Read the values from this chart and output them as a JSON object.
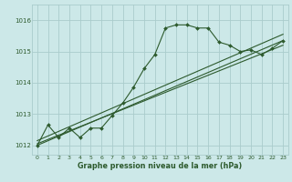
{
  "bg_color": "#cce8e8",
  "grid_color": "#aacccc",
  "line_color": "#2d5a2d",
  "xlabel": "Graphe pression niveau de la mer (hPa)",
  "xlim": [
    -0.5,
    23.5
  ],
  "ylim": [
    1011.7,
    1016.5
  ],
  "yticks": [
    1012,
    1013,
    1014,
    1015,
    1016
  ],
  "xticks": [
    0,
    1,
    2,
    3,
    4,
    5,
    6,
    7,
    8,
    9,
    10,
    11,
    12,
    13,
    14,
    15,
    16,
    17,
    18,
    19,
    20,
    21,
    22,
    23
  ],
  "main_line": [
    [
      0,
      1012.0
    ],
    [
      1,
      1012.65
    ],
    [
      2,
      1012.25
    ],
    [
      3,
      1012.55
    ],
    [
      4,
      1012.25
    ],
    [
      5,
      1012.55
    ],
    [
      6,
      1012.55
    ],
    [
      7,
      1012.95
    ],
    [
      8,
      1013.35
    ],
    [
      9,
      1013.85
    ],
    [
      10,
      1014.45
    ],
    [
      11,
      1014.9
    ],
    [
      12,
      1015.75
    ],
    [
      13,
      1015.85
    ],
    [
      14,
      1015.85
    ],
    [
      15,
      1015.75
    ],
    [
      16,
      1015.75
    ],
    [
      17,
      1015.3
    ],
    [
      18,
      1015.2
    ],
    [
      19,
      1015.0
    ],
    [
      20,
      1015.05
    ],
    [
      21,
      1014.9
    ],
    [
      22,
      1015.1
    ],
    [
      23,
      1015.35
    ]
  ],
  "trend_line1": [
    [
      0,
      1012.0
    ],
    [
      23,
      1015.35
    ]
  ],
  "trend_line2": [
    [
      0,
      1012.15
    ],
    [
      23,
      1015.55
    ]
  ],
  "trend_line3": [
    [
      0,
      1012.05
    ],
    [
      23,
      1015.2
    ]
  ]
}
